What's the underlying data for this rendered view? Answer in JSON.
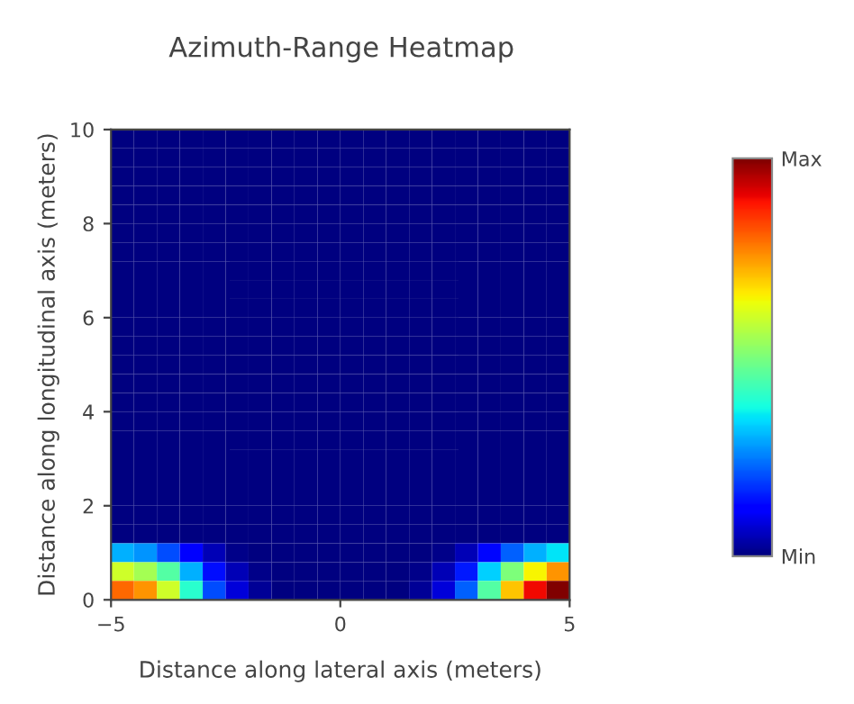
{
  "chart_data": {
    "type": "heatmap",
    "title": "Azimuth-Range Heatmap",
    "xlabel": "Distance along lateral axis (meters)",
    "ylabel": "Distance along longitudinal axis (meters)",
    "xlim": [
      -5,
      5
    ],
    "ylim": [
      0,
      10
    ],
    "xticks": [
      {
        "value": -5,
        "label": "−5"
      },
      0,
      5
    ],
    "yticks": [
      0,
      2,
      4,
      6,
      8,
      10
    ],
    "clim": [
      0,
      1
    ],
    "cticks": [
      {
        "value": 0,
        "label": "Min"
      },
      {
        "value": 1,
        "label": "Max"
      }
    ],
    "grid": false,
    "cells": [
      [
        0,
        0,
        0,
        0,
        0,
        0,
        0,
        0,
        0,
        0,
        0,
        0,
        0,
        0,
        0,
        0,
        0,
        0,
        0,
        0
      ],
      [
        0,
        0,
        0,
        0,
        0,
        0,
        0,
        0,
        0,
        0,
        0,
        0,
        0,
        0,
        0,
        0,
        0,
        0,
        0,
        0
      ],
      [
        0,
        0,
        0,
        0,
        0,
        0,
        0,
        0,
        0,
        0,
        0,
        0,
        0,
        0,
        0,
        0,
        0,
        0,
        0,
        0
      ],
      [
        0,
        0,
        0,
        0,
        0,
        0,
        0,
        0,
        0,
        0,
        0,
        0,
        0,
        0,
        0,
        0,
        0,
        0,
        0,
        0
      ],
      [
        0,
        0,
        0,
        0,
        0,
        0,
        0,
        0,
        0,
        0,
        0,
        0,
        0,
        0,
        0,
        0,
        0,
        0,
        0,
        0
      ],
      [
        0,
        0,
        0,
        0,
        0,
        0,
        0,
        0,
        0,
        0,
        0,
        0,
        0,
        0,
        0,
        0,
        0,
        0,
        0,
        0
      ],
      [
        0,
        0,
        0,
        0,
        0,
        0,
        0,
        0,
        0,
        0,
        0,
        0,
        0,
        0,
        0,
        0,
        0,
        0,
        0,
        0
      ],
      [
        0,
        0,
        0,
        0,
        0,
        0,
        0,
        0,
        0,
        0,
        0,
        0,
        0,
        0,
        0,
        0,
        0,
        0,
        0,
        0
      ],
      [
        0,
        0,
        0,
        0,
        0,
        0,
        0,
        0,
        0,
        0,
        0,
        0,
        0,
        0,
        0,
        0,
        0,
        0,
        0,
        0
      ],
      [
        0,
        0,
        0,
        0,
        0,
        0,
        0,
        0,
        0,
        0,
        0,
        0,
        0,
        0,
        0,
        0,
        0,
        0,
        0,
        0
      ],
      [
        0,
        0,
        0,
        0,
        0,
        0,
        0,
        0,
        0,
        0,
        0,
        0,
        0,
        0,
        0,
        0,
        0,
        0,
        0,
        0
      ],
      [
        0,
        0,
        0,
        0,
        0,
        0,
        0,
        0,
        0,
        0,
        0,
        0,
        0,
        0,
        0,
        0,
        0,
        0,
        0,
        0
      ],
      [
        0,
        0,
        0,
        0,
        0,
        0,
        0,
        0,
        0,
        0,
        0,
        0,
        0,
        0,
        0,
        0,
        0,
        0,
        0,
        0
      ],
      [
        0,
        0,
        0,
        0,
        0,
        0,
        0,
        0,
        0,
        0,
        0,
        0,
        0,
        0,
        0,
        0,
        0,
        0,
        0,
        0
      ],
      [
        0,
        0,
        0,
        0,
        0,
        0,
        0,
        0,
        0,
        0,
        0,
        0,
        0,
        0,
        0,
        0,
        0,
        0,
        0,
        0
      ],
      [
        0,
        0,
        0,
        0,
        0,
        0,
        0,
        0,
        0,
        0,
        0,
        0,
        0,
        0,
        0,
        0,
        0,
        0,
        0,
        0
      ],
      [
        0,
        0,
        0,
        0,
        0,
        0,
        0,
        0,
        0,
        0,
        0,
        0,
        0,
        0,
        0,
        0,
        0,
        0,
        0,
        0
      ],
      [
        0,
        0,
        0,
        0,
        0,
        0,
        0,
        0,
        0,
        0,
        0,
        0,
        0,
        0,
        0,
        0,
        0,
        0,
        0,
        0
      ],
      [
        0,
        0,
        0,
        0,
        0,
        0,
        0,
        0,
        0,
        0,
        0,
        0,
        0,
        0,
        0,
        0,
        0,
        0,
        0,
        0
      ],
      [
        0,
        0,
        0,
        0,
        0,
        0,
        0,
        0,
        0,
        0,
        0,
        0,
        0,
        0,
        0,
        0,
        0,
        0,
        0,
        0
      ],
      [
        0,
        0,
        0,
        0,
        0,
        0,
        0,
        0,
        0,
        0,
        0,
        0,
        0,
        0,
        0,
        0,
        0,
        0,
        0,
        0
      ],
      [
        0,
        0,
        0,
        0,
        0,
        0,
        0,
        0,
        0,
        0,
        0,
        0,
        0,
        0,
        0,
        0,
        0,
        0,
        0,
        0
      ],
      [
        0.3,
        0.27,
        0.2,
        0.12,
        0.05,
        0.01,
        0,
        0,
        0,
        0,
        0,
        0,
        0,
        0,
        0.01,
        0.05,
        0.13,
        0.22,
        0.3,
        0.35
      ],
      [
        0.6,
        0.55,
        0.45,
        0.3,
        0.14,
        0.05,
        0.01,
        0,
        0,
        0,
        0,
        0,
        0,
        0.01,
        0.05,
        0.15,
        0.33,
        0.5,
        0.65,
        0.75
      ],
      [
        0.8,
        0.75,
        0.6,
        0.4,
        0.2,
        0.08,
        0.02,
        0,
        0,
        0,
        0,
        0,
        0,
        0.02,
        0.08,
        0.22,
        0.45,
        0.7,
        0.9,
        1.0
      ]
    ]
  }
}
